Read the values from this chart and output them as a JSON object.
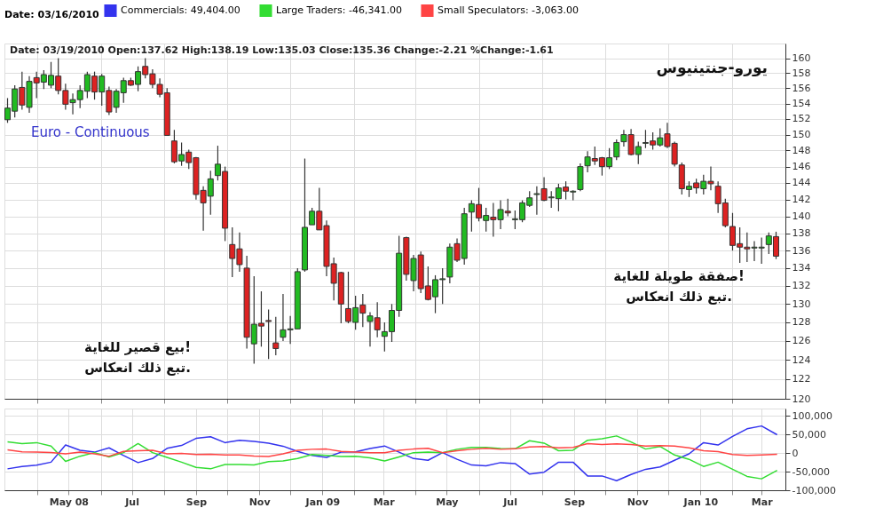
{
  "chart_data": [
    {
      "type": "candlestick",
      "title": "يورو-جنتينيوس",
      "subtitle": "Euro - Continuous",
      "annotations": [
        "Date: 03/19/2010 Open:137.62 High:138.19 Low:135.03 Close:135.36 Change:-2.21 %Change:-1.61",
        "بيع قصير للغاية!\nتبع ذلك انعكاس.",
        "صفقة طويلة للغاية!\nتبع ذلك انعكاس."
      ],
      "x": [
        "2008-03-03",
        "2008-03-10",
        "2008-03-17",
        "2008-03-24",
        "2008-03-31",
        "2008-04-07",
        "2008-04-14",
        "2008-04-21",
        "2008-04-28",
        "2008-05-05",
        "2008-05-12",
        "2008-05-19",
        "2008-05-26",
        "2008-06-02",
        "2008-06-09",
        "2008-06-16",
        "2008-06-23",
        "2008-06-30",
        "2008-07-07",
        "2008-07-14",
        "2008-07-21",
        "2008-07-28",
        "2008-08-04",
        "2008-08-11",
        "2008-08-18",
        "2008-08-25",
        "2008-09-01",
        "2008-09-08",
        "2008-09-15",
        "2008-09-22",
        "2008-09-29",
        "2008-10-06",
        "2008-10-13",
        "2008-10-20",
        "2008-10-27",
        "2008-11-03",
        "2008-11-10",
        "2008-11-17",
        "2008-11-24",
        "2008-12-01",
        "2008-12-08",
        "2008-12-15",
        "2008-12-22",
        "2008-12-29",
        "2009-01-05",
        "2009-01-12",
        "2009-01-19",
        "2009-01-26",
        "2009-02-02",
        "2009-02-09",
        "2009-02-16",
        "2009-02-23",
        "2009-03-02",
        "2009-03-09",
        "2009-03-16",
        "2009-03-23",
        "2009-03-30",
        "2009-04-06",
        "2009-04-13",
        "2009-04-20",
        "2009-04-27",
        "2009-05-04",
        "2009-05-11",
        "2009-05-18",
        "2009-05-25",
        "2009-06-01",
        "2009-06-08",
        "2009-06-15",
        "2009-06-22",
        "2009-06-29",
        "2009-07-06",
        "2009-07-13",
        "2009-07-20",
        "2009-07-27",
        "2009-08-03",
        "2009-08-10",
        "2009-08-17",
        "2009-08-24",
        "2009-08-31",
        "2009-09-07",
        "2009-09-14",
        "2009-09-21",
        "2009-09-28",
        "2009-10-05",
        "2009-10-12",
        "2009-10-19",
        "2009-10-26",
        "2009-11-02",
        "2009-11-09",
        "2009-11-16",
        "2009-11-23",
        "2009-11-30",
        "2009-12-07",
        "2009-12-14",
        "2009-12-21",
        "2009-12-28",
        "2010-01-04",
        "2010-01-11",
        "2010-01-18",
        "2010-01-25",
        "2010-02-01",
        "2010-02-08",
        "2010-02-15",
        "2010-02-22",
        "2010-03-01",
        "2010-03-08",
        "2010-03-15"
      ],
      "ohlc": [
        [
          151.9,
          154.7,
          151.5,
          153.4
        ],
        [
          153.0,
          156.4,
          152.2,
          155.9
        ],
        [
          156.1,
          158.2,
          153.2,
          153.8
        ],
        [
          153.5,
          157.6,
          152.8,
          156.9
        ],
        [
          157.4,
          158.2,
          154.7,
          156.7
        ],
        [
          156.8,
          158.4,
          155.9,
          157.8
        ],
        [
          156.4,
          159.5,
          156.0,
          157.7
        ],
        [
          157.6,
          160.0,
          155.2,
          155.7
        ],
        [
          155.7,
          156.6,
          153.2,
          153.9
        ],
        [
          154.1,
          155.3,
          152.6,
          154.5
        ],
        [
          154.5,
          156.4,
          153.4,
          155.7
        ],
        [
          155.6,
          158.2,
          154.7,
          157.8
        ],
        [
          157.6,
          158.2,
          154.5,
          155.5
        ],
        [
          155.5,
          157.9,
          153.7,
          157.6
        ],
        [
          155.7,
          156.2,
          152.5,
          152.9
        ],
        [
          153.5,
          155.9,
          152.8,
          155.6
        ],
        [
          155.4,
          157.4,
          154.1,
          157.0
        ],
        [
          157.0,
          157.4,
          156.3,
          156.4
        ],
        [
          156.5,
          158.9,
          155.6,
          158.2
        ],
        [
          158.9,
          160.0,
          157.3,
          157.8
        ],
        [
          157.9,
          158.5,
          156.0,
          156.5
        ],
        [
          156.5,
          157.3,
          154.8,
          155.2
        ],
        [
          155.4,
          156.0,
          149.9,
          149.9
        ],
        [
          149.2,
          150.6,
          146.4,
          146.6
        ],
        [
          146.7,
          149.0,
          146.1,
          147.5
        ],
        [
          147.8,
          148.1,
          145.7,
          146.5
        ],
        [
          147.1,
          147.2,
          142.0,
          142.6
        ],
        [
          143.1,
          143.6,
          138.3,
          141.6
        ],
        [
          142.4,
          145.5,
          140.2,
          144.5
        ],
        [
          144.9,
          148.6,
          144.3,
          146.3
        ],
        [
          145.4,
          146.0,
          137.1,
          138.6
        ],
        [
          136.7,
          138.7,
          133.0,
          135.1
        ],
        [
          136.2,
          138.1,
          133.6,
          134.4
        ],
        [
          134.0,
          135.4,
          125.2,
          126.4
        ],
        [
          125.7,
          133.1,
          123.6,
          127.8
        ],
        [
          127.9,
          131.4,
          125.4,
          127.6
        ],
        [
          128.2,
          129.4,
          124.1,
          128.1
        ],
        [
          125.8,
          128.6,
          124.5,
          125.2
        ],
        [
          126.4,
          131.1,
          126.0,
          127.2
        ],
        [
          127.2,
          128.7,
          125.7,
          127.3
        ],
        [
          127.3,
          134.0,
          127.3,
          133.6
        ],
        [
          133.8,
          147.0,
          133.6,
          138.7
        ],
        [
          139.0,
          141.0,
          139.0,
          140.6
        ],
        [
          140.6,
          143.4,
          138.4,
          138.4
        ],
        [
          138.9,
          139.5,
          133.1,
          134.2
        ],
        [
          134.5,
          135.2,
          130.4,
          132.3
        ],
        [
          133.5,
          133.6,
          127.9,
          130.0
        ],
        [
          129.5,
          133.6,
          127.9,
          128.1
        ],
        [
          128.0,
          130.9,
          127.2,
          129.6
        ],
        [
          129.9,
          131.1,
          127.5,
          129.0
        ],
        [
          128.1,
          129.1,
          125.4,
          128.7
        ],
        [
          128.5,
          130.2,
          126.4,
          127.2
        ],
        [
          126.5,
          128.0,
          124.9,
          127.0
        ],
        [
          127.0,
          130.0,
          125.9,
          129.3
        ],
        [
          129.3,
          137.7,
          128.6,
          135.7
        ],
        [
          137.5,
          137.6,
          132.6,
          133.3
        ],
        [
          132.6,
          135.5,
          131.4,
          135.1
        ],
        [
          135.5,
          135.9,
          131.2,
          131.7
        ],
        [
          132.0,
          134.2,
          130.4,
          130.5
        ],
        [
          130.8,
          133.2,
          129.0,
          132.7
        ],
        [
          132.7,
          134.0,
          130.0,
          132.8
        ],
        [
          133.0,
          136.8,
          132.3,
          136.4
        ],
        [
          136.8,
          137.4,
          134.7,
          134.9
        ],
        [
          135.1,
          141.0,
          134.4,
          140.3
        ],
        [
          140.5,
          141.9,
          138.2,
          141.5
        ],
        [
          141.4,
          143.4,
          139.4,
          139.8
        ],
        [
          139.5,
          141.0,
          138.2,
          140.1
        ],
        [
          139.9,
          141.6,
          137.6,
          139.6
        ],
        [
          139.6,
          141.9,
          138.5,
          140.8
        ],
        [
          140.6,
          142.1,
          140.0,
          140.4
        ],
        [
          139.6,
          140.7,
          138.5,
          139.7
        ],
        [
          139.6,
          141.9,
          139.3,
          141.6
        ],
        [
          141.3,
          143.0,
          141.1,
          142.2
        ],
        [
          142.6,
          143.6,
          140.2,
          142.7
        ],
        [
          143.3,
          144.7,
          141.8,
          141.9
        ],
        [
          142.2,
          143.0,
          141.0,
          142.3
        ],
        [
          142.1,
          143.9,
          140.6,
          143.4
        ],
        [
          143.5,
          144.2,
          142.0,
          143.0
        ],
        [
          142.9,
          143.1,
          141.9,
          143.0
        ],
        [
          143.2,
          146.4,
          143.0,
          146.0
        ],
        [
          146.1,
          147.9,
          145.3,
          147.2
        ],
        [
          147.0,
          148.5,
          146.2,
          146.7
        ],
        [
          147.1,
          147.2,
          144.9,
          146.0
        ],
        [
          146.0,
          148.3,
          145.7,
          147.1
        ],
        [
          147.2,
          149.4,
          146.8,
          149.0
        ],
        [
          149.1,
          150.6,
          148.5,
          150.0
        ],
        [
          150.0,
          150.7,
          147.4,
          147.5
        ],
        [
          147.5,
          149.1,
          146.3,
          148.5
        ],
        [
          148.9,
          150.6,
          148.3,
          149.0
        ],
        [
          149.2,
          150.3,
          148.1,
          148.7
        ],
        [
          148.7,
          150.8,
          148.5,
          149.6
        ],
        [
          150.1,
          151.5,
          148.3,
          148.5
        ],
        [
          148.9,
          149.1,
          146.0,
          146.3
        ],
        [
          146.2,
          146.5,
          142.6,
          143.3
        ],
        [
          143.2,
          144.2,
          142.3,
          143.6
        ],
        [
          144.0,
          144.5,
          142.7,
          143.4
        ],
        [
          143.3,
          145.0,
          142.6,
          144.2
        ],
        [
          144.2,
          146.0,
          143.1,
          143.9
        ],
        [
          143.6,
          144.2,
          140.4,
          141.5
        ],
        [
          141.6,
          142.1,
          138.7,
          138.9
        ],
        [
          138.8,
          140.4,
          136.0,
          136.6
        ],
        [
          136.8,
          138.7,
          134.6,
          136.4
        ],
        [
          136.4,
          138.1,
          134.7,
          136.2
        ],
        [
          136.3,
          137.1,
          134.8,
          136.4
        ],
        [
          136.3,
          137.5,
          134.5,
          136.4
        ],
        [
          136.7,
          138.1,
          135.6,
          137.7
        ],
        [
          137.62,
          138.19,
          135.03,
          135.36
        ]
      ],
      "xlim": [
        "2008-02-29",
        "2010-03-24"
      ],
      "xticks": [
        {
          "value": "2008-04-01",
          "label": null
        },
        {
          "value": "2008-05-01",
          "label": null
        },
        {
          "value": "2008-06-01",
          "label": null
        },
        {
          "value": "2008-07-01",
          "label": null
        },
        {
          "value": "2008-08-01",
          "label": null
        },
        {
          "value": "2008-09-01",
          "label": null
        },
        {
          "value": "2008-10-01",
          "label": null
        },
        {
          "value": "2008-11-01",
          "label": null
        },
        {
          "value": "2008-12-01",
          "label": null
        },
        {
          "value": "2009-01-01",
          "label": null
        },
        {
          "value": "2009-02-01",
          "label": null
        },
        {
          "value": "2009-03-01",
          "label": null
        },
        {
          "value": "2009-04-01",
          "label": null
        },
        {
          "value": "2009-05-01",
          "label": null
        },
        {
          "value": "2009-06-01",
          "label": null
        },
        {
          "value": "2009-07-01",
          "label": null
        },
        {
          "value": "2009-08-01",
          "label": null
        },
        {
          "value": "2009-09-01",
          "label": null
        },
        {
          "value": "2009-10-01",
          "label": null
        },
        {
          "value": "2009-11-01",
          "label": null
        },
        {
          "value": "2009-12-01",
          "label": null
        },
        {
          "value": "2010-01-01",
          "label": null
        },
        {
          "value": "2010-02-01",
          "label": null
        },
        {
          "value": "2010-03-01",
          "label": null
        }
      ],
      "ylim": [
        120,
        162
      ],
      "yticks": [
        120,
        122,
        124,
        126,
        128,
        130,
        132,
        134,
        136,
        138,
        140,
        142,
        144,
        146,
        148,
        150,
        152,
        154,
        156,
        158,
        160
      ],
      "log": true,
      "grid": true,
      "tick_labels": "y"
    },
    {
      "type": "line",
      "legend": "top",
      "legend_title": "Date: 03/16/2010",
      "x": [
        "2008-03-03",
        "2008-03-17",
        "2008-03-31",
        "2008-04-14",
        "2008-04-28",
        "2008-05-12",
        "2008-05-26",
        "2008-06-09",
        "2008-06-23",
        "2008-07-07",
        "2008-07-21",
        "2008-08-04",
        "2008-08-18",
        "2008-09-01",
        "2008-09-15",
        "2008-09-29",
        "2008-10-13",
        "2008-10-27",
        "2008-11-10",
        "2008-11-24",
        "2008-12-08",
        "2008-12-22",
        "2009-01-05",
        "2009-01-19",
        "2009-02-02",
        "2009-02-16",
        "2009-03-02",
        "2009-03-16",
        "2009-03-30",
        "2009-04-13",
        "2009-04-27",
        "2009-05-11",
        "2009-05-25",
        "2009-06-08",
        "2009-06-22",
        "2009-07-06",
        "2009-07-20",
        "2009-08-03",
        "2009-08-17",
        "2009-08-31",
        "2009-09-14",
        "2009-09-28",
        "2009-10-12",
        "2009-10-26",
        "2009-11-09",
        "2009-11-23",
        "2009-12-07",
        "2009-12-21",
        "2010-01-04",
        "2010-01-18",
        "2010-02-01",
        "2010-02-15",
        "2010-03-01",
        "2010-03-16"
      ],
      "series": [
        {
          "name": "Commercials: 49,404.00",
          "color": "#3333ee",
          "values": [
            -42300,
            -35900,
            -32700,
            -24400,
            21800,
            7700,
            2600,
            14100,
            -6400,
            -25600,
            -14700,
            12800,
            20500,
            39700,
            44200,
            28200,
            34600,
            31400,
            26900,
            18600,
            4500,
            -6400,
            -11500,
            2600,
            3200,
            12200,
            19200,
            2600,
            -14700,
            -19200,
            1300,
            -16700,
            -32100,
            -34000,
            -25600,
            -28200,
            -56400,
            -51300,
            -24400,
            -24400,
            -61500,
            -61500,
            -74400,
            -57700,
            -43600,
            -37200,
            -19200,
            -1900,
            28200,
            21800,
            44900,
            65400,
            73100,
            49404
          ]
        },
        {
          "name": "Large Traders: -46,341.00",
          "color": "#33dd33",
          "values": [
            30100,
            25600,
            28200,
            19200,
            -22400,
            -8300,
            1300,
            -10300,
            1300,
            25600,
            1300,
            -11500,
            -24400,
            -38500,
            -42300,
            -30800,
            -30800,
            -32100,
            -23100,
            -21200,
            -14700,
            -3800,
            -6400,
            -9000,
            -8300,
            -12800,
            -21200,
            -10300,
            1300,
            2600,
            1300,
            10300,
            15400,
            15400,
            12200,
            11500,
            33300,
            26900,
            6400,
            7700,
            34600,
            38500,
            46200,
            30100,
            10900,
            17900,
            -5100,
            -16700,
            -35900,
            -24400,
            -43600,
            -62800,
            -69200,
            -46341
          ]
        },
        {
          "name": "Small Speculators: -3,063.00",
          "color": "#ff4444",
          "values": [
            9000,
            3200,
            2600,
            1900,
            -1900,
            2600,
            -1900,
            -8300,
            4500,
            6400,
            7700,
            -1900,
            -600,
            -3800,
            -3200,
            -5100,
            -5100,
            -7700,
            -9000,
            -1900,
            7700,
            10300,
            10900,
            4500,
            2600,
            1300,
            1300,
            7700,
            10900,
            12800,
            1300,
            6400,
            10300,
            12800,
            10300,
            11500,
            16700,
            17900,
            14100,
            15400,
            25600,
            23100,
            25000,
            23100,
            19200,
            19900,
            19200,
            14100,
            6400,
            3800,
            -3800,
            -6400,
            -5100,
            -3063
          ]
        }
      ],
      "xlim": [
        "2008-02-29",
        "2010-03-24"
      ],
      "xticks": [
        {
          "value": "2008-04-01",
          "label": null
        },
        {
          "value": "2008-05-01",
          "label": "May 08"
        },
        {
          "value": "2008-06-01",
          "label": null
        },
        {
          "value": "2008-07-01",
          "label": "Jul"
        },
        {
          "value": "2008-08-01",
          "label": null
        },
        {
          "value": "2008-09-01",
          "label": "Sep"
        },
        {
          "value": "2008-10-01",
          "label": null
        },
        {
          "value": "2008-11-01",
          "label": "Nov"
        },
        {
          "value": "2008-12-01",
          "label": null
        },
        {
          "value": "2009-01-01",
          "label": "Jan 09"
        },
        {
          "value": "2009-02-01",
          "label": null
        },
        {
          "value": "2009-03-01",
          "label": "Mar"
        },
        {
          "value": "2009-04-01",
          "label": null
        },
        {
          "value": "2009-05-01",
          "label": "May"
        },
        {
          "value": "2009-06-01",
          "label": null
        },
        {
          "value": "2009-07-01",
          "label": "Jul"
        },
        {
          "value": "2009-08-01",
          "label": null
        },
        {
          "value": "2009-09-01",
          "label": "Sep"
        },
        {
          "value": "2009-10-01",
          "label": null
        },
        {
          "value": "2009-11-01",
          "label": "Nov"
        },
        {
          "value": "2009-12-01",
          "label": null
        },
        {
          "value": "2010-01-01",
          "label": "Jan 10"
        },
        {
          "value": "2010-02-01",
          "label": null
        },
        {
          "value": "2010-03-01",
          "label": "Mar"
        }
      ],
      "ylim": [
        -100000,
        120000
      ],
      "yticks": [
        {
          "value": -100000,
          "label": "-100,000"
        },
        {
          "value": -50000,
          "label": "-50,000"
        },
        0,
        {
          "value": 50000,
          "label": "50,000"
        },
        {
          "value": 100000,
          "label": "100,000"
        }
      ],
      "grid": true
    }
  ]
}
